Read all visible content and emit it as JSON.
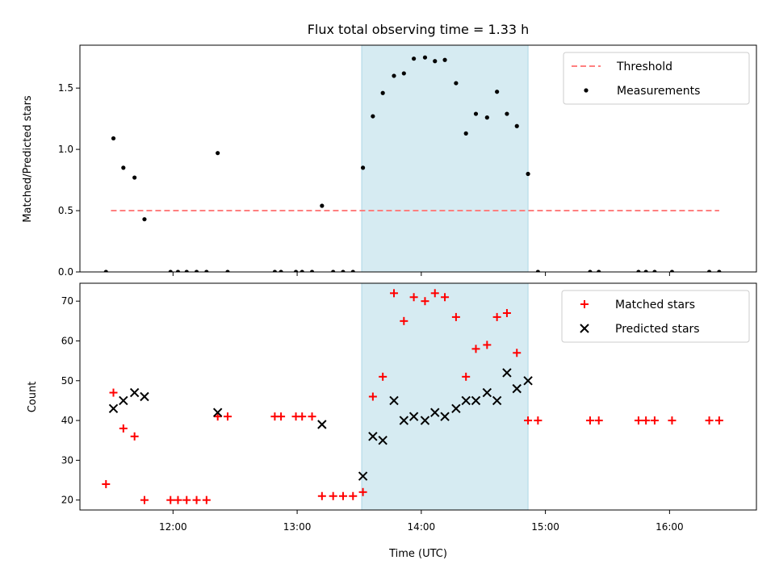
{
  "chart_data": {
    "title": "Flux total observing time = 1.33 h",
    "xlabel": "Time (UTC)",
    "x_tick_labels": [
      "12:00",
      "13:00",
      "14:00",
      "15:00",
      "16:00"
    ],
    "x_ticks": [
      12.0,
      13.0,
      14.0,
      15.0,
      16.0
    ],
    "xlim": [
      11.25,
      16.7
    ],
    "highlight_span": {
      "from": 13.52,
      "to": 14.86,
      "color": "#add8e6"
    },
    "panels": [
      {
        "type": "scatter",
        "ylabel": "Matched/Predicted stars",
        "ylim": [
          0,
          1.85
        ],
        "y_ticks": [
          0.0,
          0.5,
          1.0,
          1.5
        ],
        "y_tick_labels": [
          "0.0",
          "0.5",
          "1.0",
          "1.5"
        ],
        "legend_position": "top-right",
        "threshold": {
          "name": "Threshold",
          "value": 0.5,
          "x_range": [
            11.5,
            16.4
          ],
          "color": "#ff7f7f",
          "style": "dashed"
        },
        "series": [
          {
            "name": "Measurements",
            "marker": "dot",
            "color": "#000000",
            "x": [
              11.46,
              11.52,
              11.6,
              11.69,
              11.77,
              11.98,
              12.04,
              12.11,
              12.19,
              12.27,
              12.36,
              12.44,
              12.82,
              12.87,
              12.99,
              13.04,
              13.12,
              13.2,
              13.29,
              13.37,
              13.45,
              13.53,
              13.61,
              13.69,
              13.78,
              13.86,
              13.94,
              14.03,
              14.11,
              14.19,
              14.28,
              14.36,
              14.44,
              14.53,
              14.61,
              14.69,
              14.77,
              14.86,
              14.94,
              15.36,
              15.43,
              15.75,
              15.81,
              15.88,
              16.02,
              16.32,
              16.4
            ],
            "y": [
              0.0,
              1.09,
              0.85,
              0.77,
              0.43,
              0.0,
              0.0,
              0.0,
              0.0,
              0.0,
              0.97,
              0.0,
              0.0,
              0.0,
              0.0,
              0.0,
              0.0,
              0.54,
              0.0,
              0.0,
              0.0,
              0.85,
              1.27,
              1.46,
              1.6,
              1.62,
              1.74,
              1.75,
              1.72,
              1.73,
              1.54,
              1.13,
              1.29,
              1.26,
              1.47,
              1.29,
              1.19,
              0.8,
              0.0,
              0.0,
              0.0,
              0.0,
              0.0,
              0.0,
              0.0,
              0.0,
              0.0
            ]
          }
        ]
      },
      {
        "type": "scatter",
        "ylabel": "Count",
        "ylim": [
          17.5,
          74.5
        ],
        "y_ticks": [
          20,
          30,
          40,
          50,
          60,
          70
        ],
        "y_tick_labels": [
          "20",
          "30",
          "40",
          "50",
          "60",
          "70"
        ],
        "legend_position": "top-right",
        "series": [
          {
            "name": "Matched stars",
            "marker": "plus",
            "color": "#ff0000",
            "x": [
              11.46,
              11.52,
              11.6,
              11.69,
              11.77,
              11.98,
              12.04,
              12.11,
              12.19,
              12.27,
              12.36,
              12.44,
              12.82,
              12.87,
              12.99,
              13.04,
              13.12,
              13.2,
              13.29,
              13.37,
              13.45,
              13.53,
              13.61,
              13.69,
              13.78,
              13.86,
              13.94,
              14.03,
              14.11,
              14.19,
              14.28,
              14.36,
              14.44,
              14.53,
              14.61,
              14.69,
              14.77,
              14.86,
              14.94,
              15.36,
              15.43,
              15.75,
              15.81,
              15.88,
              16.02,
              16.32,
              16.4
            ],
            "y": [
              24,
              47,
              38,
              36,
              20,
              20,
              20,
              20,
              20,
              20,
              41,
              41,
              41,
              41,
              41,
              41,
              41,
              21,
              21,
              21,
              21,
              22,
              46,
              51,
              72,
              65,
              71,
              70,
              72,
              71,
              66,
              51,
              58,
              59,
              66,
              67,
              57,
              40,
              40,
              40,
              40,
              40,
              40,
              40,
              40,
              40,
              40
            ]
          },
          {
            "name": "Predicted stars",
            "marker": "x",
            "color": "#000000",
            "x": [
              11.52,
              11.6,
              11.69,
              11.77,
              12.36,
              13.2,
              13.53,
              13.61,
              13.69,
              13.78,
              13.86,
              13.94,
              14.03,
              14.11,
              14.19,
              14.28,
              14.36,
              14.44,
              14.53,
              14.61,
              14.69,
              14.77,
              14.86
            ],
            "y": [
              43,
              45,
              47,
              46,
              42,
              39,
              26,
              36,
              35,
              45,
              40,
              41,
              40,
              42,
              41,
              43,
              45,
              45,
              47,
              45,
              52,
              48,
              50
            ]
          }
        ]
      }
    ]
  }
}
